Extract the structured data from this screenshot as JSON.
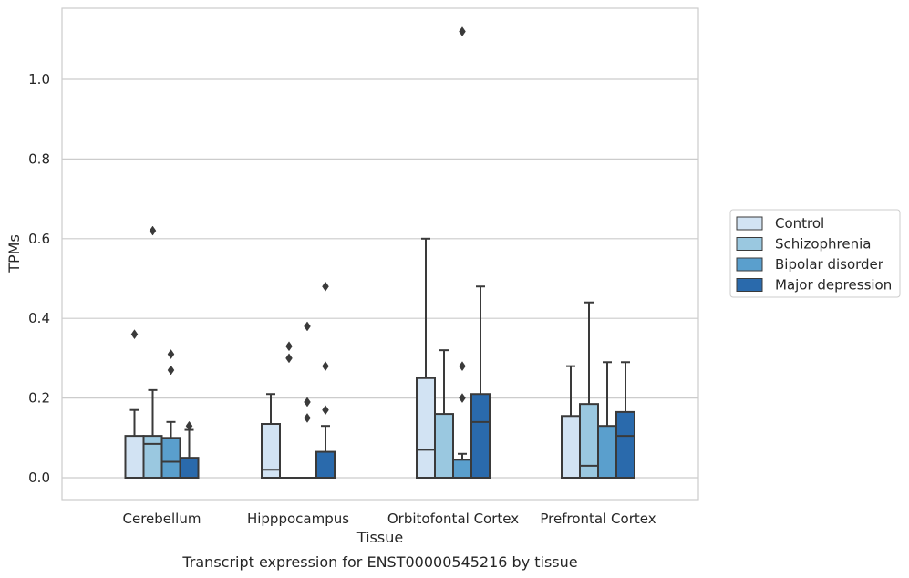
{
  "chart_data": {
    "type": "box",
    "xlabel": "Tissue",
    "ylabel": "TPMs",
    "caption": "Transcript expression for ENST00000545216 by tissue",
    "ylim": [
      -0.055,
      1.18
    ],
    "yticks": [
      "0.0",
      "0.2",
      "0.4",
      "0.6",
      "0.8",
      "1.0"
    ],
    "ytick_values": [
      0.0,
      0.2,
      0.4,
      0.6,
      0.8,
      1.0
    ],
    "grid": "horizontal",
    "legend_position": "right",
    "categories": [
      "Cerebellum",
      "Hipppocampus",
      "Orbitofontal Cortex",
      "Prefrontal Cortex"
    ],
    "series": [
      {
        "name": "Control",
        "color": "#d2e3f3",
        "boxes": [
          {
            "q1": 0.0,
            "median": 0.0,
            "q3": 0.105,
            "whisker_low": 0.0,
            "whisker_high": 0.17,
            "outliers": [
              0.36
            ]
          },
          {
            "q1": 0.0,
            "median": 0.02,
            "q3": 0.135,
            "whisker_low": 0.0,
            "whisker_high": 0.21,
            "outliers": []
          },
          {
            "q1": 0.0,
            "median": 0.07,
            "q3": 0.25,
            "whisker_low": 0.0,
            "whisker_high": 0.6,
            "outliers": []
          },
          {
            "q1": 0.0,
            "median": 0.0,
            "q3": 0.155,
            "whisker_low": 0.0,
            "whisker_high": 0.28,
            "outliers": []
          }
        ]
      },
      {
        "name": "Schizophrenia",
        "color": "#9ac8e0",
        "boxes": [
          {
            "q1": 0.0,
            "median": 0.085,
            "q3": 0.105,
            "whisker_low": 0.0,
            "whisker_high": 0.22,
            "outliers": [
              0.62
            ]
          },
          {
            "q1": 0.0,
            "median": 0.0,
            "q3": 0.0,
            "whisker_low": 0.0,
            "whisker_high": 0.0,
            "outliers": [
              0.3,
              0.33
            ]
          },
          {
            "q1": 0.0,
            "median": 0.0,
            "q3": 0.16,
            "whisker_low": 0.0,
            "whisker_high": 0.32,
            "outliers": []
          },
          {
            "q1": 0.0,
            "median": 0.03,
            "q3": 0.185,
            "whisker_low": 0.0,
            "whisker_high": 0.44,
            "outliers": []
          }
        ]
      },
      {
        "name": "Bipolar disorder",
        "color": "#5a9fcd",
        "boxes": [
          {
            "q1": 0.0,
            "median": 0.04,
            "q3": 0.1,
            "whisker_low": 0.0,
            "whisker_high": 0.14,
            "outliers": [
              0.27,
              0.31
            ]
          },
          {
            "q1": 0.0,
            "median": 0.0,
            "q3": 0.0,
            "whisker_low": 0.0,
            "whisker_high": 0.0,
            "outliers": [
              0.15,
              0.19,
              0.38
            ]
          },
          {
            "q1": 0.0,
            "median": 0.0,
            "q3": 0.045,
            "whisker_low": 0.0,
            "whisker_high": 0.06,
            "outliers": [
              0.2,
              0.28,
              1.12
            ]
          },
          {
            "q1": 0.0,
            "median": 0.0,
            "q3": 0.13,
            "whisker_low": 0.0,
            "whisker_high": 0.29,
            "outliers": []
          }
        ]
      },
      {
        "name": "Major depression",
        "color": "#2a6aac",
        "boxes": [
          {
            "q1": 0.0,
            "median": 0.0,
            "q3": 0.05,
            "whisker_low": 0.0,
            "whisker_high": 0.12,
            "outliers": [
              0.13
            ]
          },
          {
            "q1": 0.0,
            "median": 0.0,
            "q3": 0.065,
            "whisker_low": 0.0,
            "whisker_high": 0.13,
            "outliers": [
              0.17,
              0.28,
              0.48
            ]
          },
          {
            "q1": 0.0,
            "median": 0.14,
            "q3": 0.21,
            "whisker_low": 0.0,
            "whisker_high": 0.48,
            "outliers": []
          },
          {
            "q1": 0.0,
            "median": 0.105,
            "q3": 0.165,
            "whisker_low": 0.0,
            "whisker_high": 0.29,
            "outliers": []
          }
        ]
      }
    ],
    "colors": {
      "grid": "#cccccc",
      "frame": "#cccccc",
      "line": "#3a3a3a",
      "text": "#262626"
    }
  }
}
